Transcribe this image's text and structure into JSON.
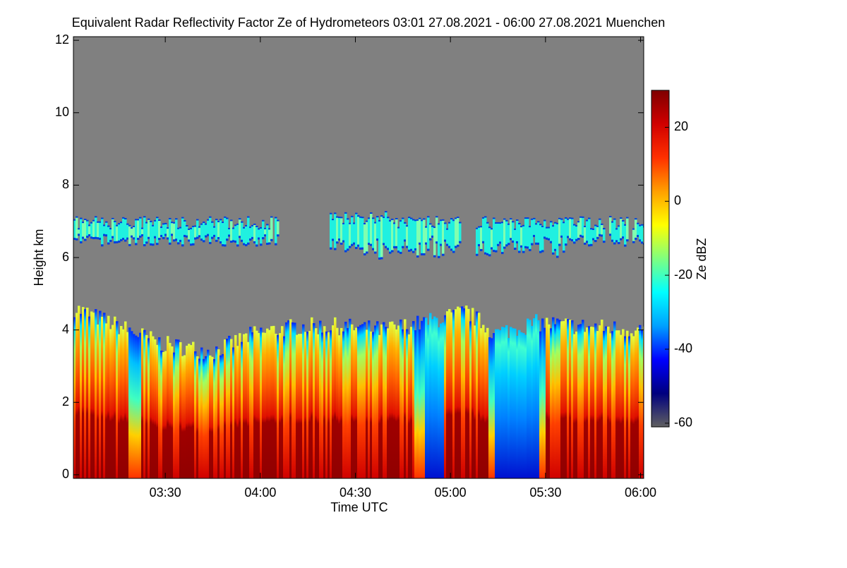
{
  "chart_data": {
    "type": "time-height",
    "title": "Equivalent Radar Reflectivity Factor Ze of Hydrometeors   03:01 27.08.2021 - 06:00 27.08.2021 Muenchen",
    "x_label": "Time UTC",
    "y_label": "Height km",
    "xlim": [
      181,
      361
    ],
    "xticks": [
      {
        "value": 210,
        "label": "03:30"
      },
      {
        "value": 240,
        "label": "04:00"
      },
      {
        "value": 270,
        "label": "04:30"
      },
      {
        "value": 300,
        "label": "05:00"
      },
      {
        "value": 330,
        "label": "05:30"
      },
      {
        "value": 360,
        "label": "06:00"
      }
    ],
    "ylim": [
      -0.1,
      12.1
    ],
    "yticks": [
      0,
      2,
      4,
      6,
      8,
      10,
      12
    ],
    "colorbar": {
      "label": "Ze dBZ",
      "lim": [
        -61,
        30
      ],
      "ticks": [
        -60,
        -40,
        -20,
        0,
        20
      ],
      "colors": [
        "#606060",
        "#00007f",
        "#0000ff",
        "#00a0ff",
        "#00ffff",
        "#7fff7f",
        "#ffff00",
        "#ff9f00",
        "#ff3000",
        "#d00000",
        "#7f0000"
      ]
    },
    "background": "#808080"
  }
}
